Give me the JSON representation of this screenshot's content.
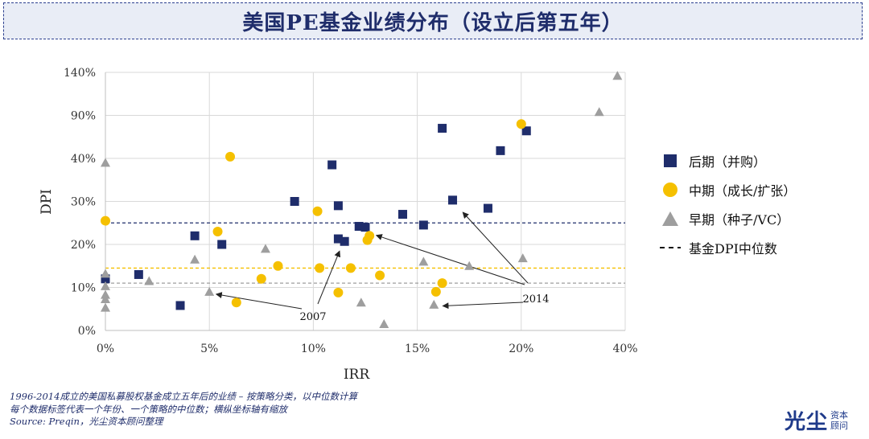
{
  "header": {
    "title": "美国PE基金业绩分布（设立后第五年）"
  },
  "chart_data": {
    "type": "scatter",
    "xlabel": "IRR",
    "ylabel": "DPI",
    "x_ticks": [
      "0%",
      "5%",
      "10%",
      "15%",
      "20%",
      "40%"
    ],
    "y_ticks": [
      "0%",
      "10%",
      "20%",
      "30%",
      "40%",
      "90%",
      "140%"
    ],
    "x_tick_values": [
      0,
      5,
      10,
      15,
      20,
      40
    ],
    "y_tick_values": [
      0,
      10,
      20,
      30,
      40,
      90,
      140
    ],
    "note": "axes are piecewise linear (axis break); x ticks evenly spaced at 0,5,10,15,20,40; y ticks evenly spaced at 0,10,20,30,40,90,140",
    "medians": [
      {
        "series": "后期（并购）",
        "y": 25.0,
        "color": "#1f2d6b"
      },
      {
        "series": "中期（成长/扩张）",
        "y": 14.5,
        "color": "#f5c000"
      },
      {
        "series": "早期（种子/VC）",
        "y": 11.0,
        "color": "#9e9e9e"
      }
    ],
    "series": [
      {
        "name": "后期（并购）",
        "marker": "square",
        "color": "#1f2d6b",
        "points": [
          [
            0,
            12
          ],
          [
            1.6,
            13
          ],
          [
            3.6,
            5.8
          ],
          [
            4.3,
            22
          ],
          [
            5.6,
            20
          ],
          [
            9.1,
            30
          ],
          [
            10.9,
            38.5
          ],
          [
            11.2,
            29
          ],
          [
            11.2,
            21.3
          ],
          [
            11.5,
            20.7
          ],
          [
            12.2,
            24.2
          ],
          [
            12.5,
            24
          ],
          [
            14.3,
            27
          ],
          [
            15.3,
            24.5
          ],
          [
            16.2,
            75
          ],
          [
            16.7,
            30.3
          ],
          [
            18.4,
            28.4
          ],
          [
            19,
            49
          ],
          [
            21,
            72
          ]
        ]
      },
      {
        "name": "中期（成长/扩张）",
        "marker": "circle",
        "color": "#f5c000",
        "points": [
          [
            0,
            25.5
          ],
          [
            5.4,
            23
          ],
          [
            6,
            42
          ],
          [
            6.3,
            6.5
          ],
          [
            7.5,
            12
          ],
          [
            8.3,
            15
          ],
          [
            10.2,
            27.7
          ],
          [
            10.3,
            14.5
          ],
          [
            11.2,
            8.8
          ],
          [
            11.8,
            14.5
          ],
          [
            12.6,
            21
          ],
          [
            12.7,
            22
          ],
          [
            13.2,
            12.8
          ],
          [
            15.9,
            9
          ],
          [
            16.2,
            11
          ],
          [
            20,
            80
          ]
        ]
      },
      {
        "name": "早期（种子/VC）",
        "marker": "triangle",
        "color": "#9e9e9e",
        "points": [
          [
            0,
            39
          ],
          [
            0,
            13.2
          ],
          [
            0,
            10.3
          ],
          [
            0,
            8.3
          ],
          [
            0,
            7.3
          ],
          [
            0,
            5.3
          ],
          [
            2.1,
            11.5
          ],
          [
            4.3,
            16.5
          ],
          [
            5,
            9
          ],
          [
            7.7,
            19
          ],
          [
            12.3,
            6.5
          ],
          [
            13.4,
            1.5
          ],
          [
            15.3,
            16
          ],
          [
            15.8,
            6
          ],
          [
            17.5,
            15
          ],
          [
            20.3,
            16.8
          ],
          [
            35,
            94
          ],
          [
            38.5,
            136
          ]
        ]
      }
    ],
    "annotations": [
      {
        "text": "2007"
      },
      {
        "text": "2014"
      }
    ]
  },
  "legend": {
    "items": [
      {
        "label": "后期（并购）"
      },
      {
        "label": "中期（成长/扩张）"
      },
      {
        "label": "早期（种子/VC）"
      },
      {
        "label": "基金DPI中位数"
      }
    ]
  },
  "footnote": {
    "line1": "1996-2014成立的美国私募股权基金成立五年后的业绩 – 按策略分类，以中位数计算",
    "line2": "每个数据标签代表一个年份、一个策略的中位数；横纵坐标轴有缩放",
    "line3": "Source: Preqin，光尘资本顾问整理"
  },
  "logo": {
    "main": "光尘",
    "sub1": "资本",
    "sub2": "顾问"
  }
}
